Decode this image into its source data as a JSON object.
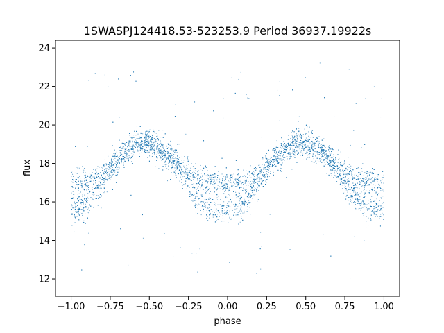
{
  "chart_data": {
    "type": "scatter",
    "title": "1SWASPJ124418.53-523253.9 Period 36937.19922s",
    "xlabel": "phase",
    "ylabel": "flux",
    "xlim": [
      -1.1,
      1.1
    ],
    "ylim": [
      11.1,
      24.4
    ],
    "x_ticks": [
      -1.0,
      -0.75,
      -0.5,
      -0.25,
      0.0,
      0.25,
      0.5,
      0.75,
      1.0
    ],
    "x_tick_labels": [
      "−1.00",
      "−0.75",
      "−0.50",
      "−0.25",
      "0.00",
      "0.25",
      "0.50",
      "0.75",
      "1.00"
    ],
    "y_ticks": [
      12,
      14,
      16,
      18,
      20,
      22,
      24
    ],
    "y_tick_labels": [
      "12",
      "14",
      "16",
      "18",
      "20",
      "22",
      "24"
    ],
    "grid": false,
    "point_color": "#1f77b4",
    "series": [
      {
        "x_range": [
          -1.0,
          1.0
        ],
        "approx_points": 30000,
        "upper_branch_envelope": {
          "phase": [
            0.0,
            0.1,
            0.2,
            0.3,
            0.4,
            0.45,
            0.5,
            0.6,
            0.7,
            0.8,
            0.9,
            1.0
          ],
          "flux": [
            17.0,
            17.0,
            17.4,
            18.2,
            18.9,
            19.1,
            19.0,
            18.6,
            17.9,
            17.2,
            17.0,
            17.0
          ]
        },
        "lower_branch_envelope": {
          "phase": [
            0.0,
            0.1,
            0.2,
            0.3,
            0.4,
            0.45,
            0.5,
            0.6,
            0.7,
            0.8,
            0.9,
            1.0
          ],
          "flux": [
            15.6,
            15.8,
            17.0,
            18.2,
            18.9,
            19.1,
            19.0,
            18.6,
            17.6,
            16.2,
            15.6,
            15.6
          ]
        },
        "scatter_sigma": 0.35,
        "outlier_fraction": 0.03
      }
    ]
  }
}
